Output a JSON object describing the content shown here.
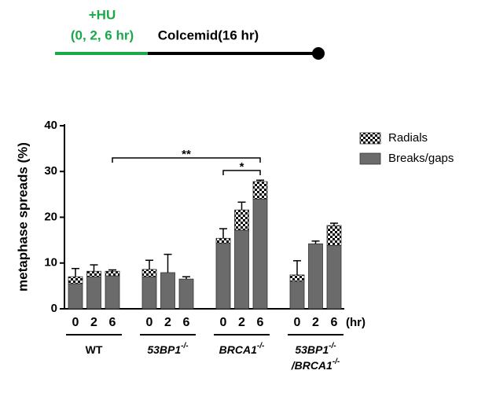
{
  "timeline": {
    "hu": "+HU",
    "times": "(0, 2, 6 hr)",
    "colcemid": "Colcemid(16 hr)"
  },
  "chart_data": {
    "type": "stacked-bar",
    "ylabel": "metaphase spreads (%)",
    "ylim": [
      0,
      40
    ],
    "yticks": [
      0,
      10,
      20,
      30,
      40
    ],
    "categories": [
      "0",
      "2",
      "6",
      "0",
      "2",
      "6",
      "0",
      "2",
      "6",
      "0",
      "2",
      "6"
    ],
    "x_unit": "(hr)",
    "groups": [
      {
        "lines": [
          {
            "text": "WT"
          }
        ]
      },
      {
        "lines": [
          {
            "text": "53BP1",
            "sup": "-/-"
          }
        ]
      },
      {
        "lines": [
          {
            "text": "BRCA1",
            "sup": "-/-"
          }
        ]
      },
      {
        "lines": [
          {
            "text": "53BP1",
            "sup": "-/-"
          },
          {
            "text": "/BRCA1",
            "sup": "-/-"
          }
        ]
      }
    ],
    "series": [
      {
        "name": "Breaks/gaps",
        "color": "#6b6b6b",
        "values": [
          5.5,
          7,
          7.2,
          7,
          7.9,
          6.5,
          14.3,
          17.2,
          24,
          6,
          14.2,
          13.8
        ]
      },
      {
        "name": "Radials",
        "color": "checker",
        "values": [
          1.5,
          1.2,
          1,
          1.6,
          0,
          0,
          1.1,
          4.4,
          3.8,
          1.4,
          0,
          4.4
        ]
      }
    ],
    "errors": [
      1.8,
      1.4,
      0.3,
      2,
      4,
      0.5,
      2.1,
      1.7,
      0.3,
      3.1,
      0.6,
      0.5
    ],
    "annotations": [
      "**",
      "*"
    ]
  }
}
